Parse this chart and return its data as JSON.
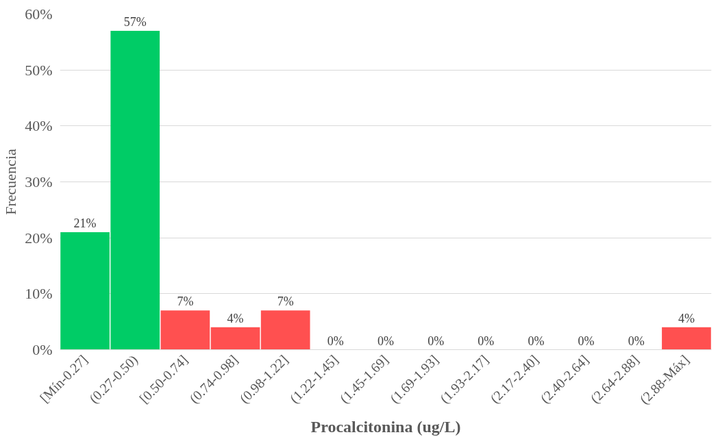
{
  "chart_data": {
    "type": "bar",
    "xlabel": "Procalcitonina (ug/L)",
    "ylabel": "Frecuencia",
    "categories": [
      "[Mín-0.27]",
      "(0.27-0.50)",
      "[0.50-0.74]",
      "(0.74-0.98]",
      "(0.98-1.22]",
      "(1.22-1.45]",
      "(1.45-1.69]",
      "(1.69-1.93]",
      "(1.93-2.17]",
      "(2.17-2.40]",
      "(2.40-2.64]",
      "(2.64-2.88]",
      "(2.88-Máx]"
    ],
    "values": [
      21,
      57,
      7,
      4,
      7,
      0,
      0,
      0,
      0,
      0,
      0,
      0,
      4
    ],
    "colors": [
      "#00cc66",
      "#00cc66",
      "#ff5050",
      "#ff5050",
      "#ff5050",
      "#ff5050",
      "#ff5050",
      "#ff5050",
      "#ff5050",
      "#ff5050",
      "#ff5050",
      "#ff5050",
      "#ff5050"
    ],
    "value_labels": [
      "21%",
      "57%",
      "7%",
      "4%",
      "7%",
      "0%",
      "0%",
      "0%",
      "0%",
      "0%",
      "0%",
      "0%",
      "4%"
    ],
    "ylim": [
      0,
      60
    ],
    "yticks": [
      {
        "value": 0,
        "label": "0%"
      },
      {
        "value": 10,
        "label": "10%"
      },
      {
        "value": 20,
        "label": "20%"
      },
      {
        "value": 30,
        "label": "30%"
      },
      {
        "value": 40,
        "label": "40%"
      },
      {
        "value": 50,
        "label": "50%"
      },
      {
        "value": 60,
        "label": "60%"
      }
    ],
    "grid": "y"
  }
}
